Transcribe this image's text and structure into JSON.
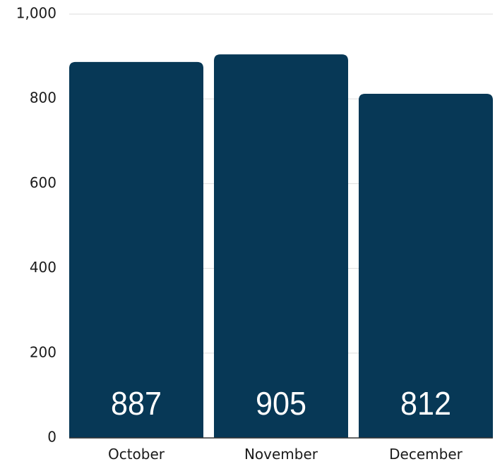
{
  "chart_data": {
    "type": "bar",
    "categories": [
      "October",
      "November",
      "December"
    ],
    "values": [
      887,
      905,
      812
    ],
    "value_labels": [
      "887",
      "905",
      "812"
    ],
    "title": "",
    "xlabel": "",
    "ylabel": "",
    "ylim": [
      0,
      1000
    ],
    "y_ticks": [
      0,
      200,
      400,
      600,
      800,
      1000
    ],
    "y_tick_labels": [
      "0",
      "200",
      "400",
      "600",
      "800",
      "1,000"
    ],
    "grid": true,
    "legend": "none",
    "colors": {
      "bar": "#073856",
      "grid": "#dddddd",
      "axis": "#333333"
    }
  }
}
